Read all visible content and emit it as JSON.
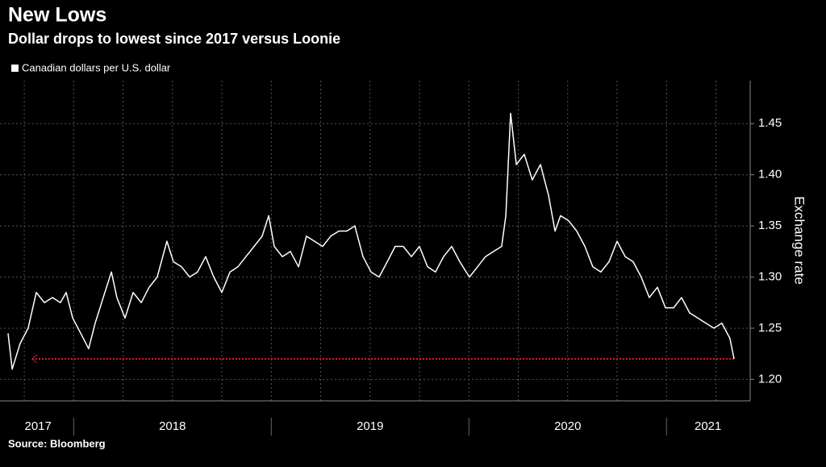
{
  "chart_data": {
    "type": "line",
    "title": "New Lows",
    "subtitle": "Dollar drops to lowest since 2017 versus Loonie",
    "y_axis_label": "Exchange rate",
    "source": "Source: Bloomberg",
    "x": [
      2017.668,
      2017.689,
      2017.729,
      2017.77,
      2017.811,
      2017.852,
      2017.893,
      2017.933,
      2017.962,
      2017.995,
      2018.036,
      2018.076,
      2018.109,
      2018.15,
      2018.191,
      2018.219,
      2018.26,
      2018.301,
      2018.342,
      2018.382,
      2018.423,
      2018.472,
      2018.505,
      2018.546,
      2018.587,
      2018.627,
      2018.668,
      2018.709,
      2018.75,
      2018.791,
      2018.831,
      2018.872,
      2018.913,
      2018.954,
      2018.987,
      2019.015,
      2019.056,
      2019.097,
      2019.138,
      2019.178,
      2019.219,
      2019.26,
      2019.301,
      2019.342,
      2019.382,
      2019.423,
      2019.464,
      2019.505,
      2019.546,
      2019.587,
      2019.627,
      2019.668,
      2019.709,
      2019.75,
      2019.791,
      2019.831,
      2019.872,
      2019.913,
      2019.954,
      2020.003,
      2020.044,
      2020.084,
      2020.125,
      2020.166,
      2020.187,
      2020.211,
      2020.24,
      2020.28,
      2020.321,
      2020.362,
      2020.403,
      2020.436,
      2020.464,
      2020.505,
      2020.546,
      2020.587,
      2020.627,
      2020.668,
      2020.709,
      2020.75,
      2020.791,
      2020.831,
      2020.872,
      2020.913,
      2020.954,
      2020.995,
      2021.036,
      2021.076,
      2021.117,
      2021.158,
      2021.199,
      2021.24,
      2021.28,
      2021.321,
      2021.342
    ],
    "series": [
      {
        "name": "Canadian dollars per U.S. dollar",
        "color": "#ffffff",
        "values": [
          1.245,
          1.21,
          1.235,
          1.25,
          1.285,
          1.275,
          1.28,
          1.275,
          1.285,
          1.26,
          1.245,
          1.23,
          1.255,
          1.28,
          1.305,
          1.28,
          1.26,
          1.285,
          1.275,
          1.29,
          1.3,
          1.335,
          1.315,
          1.31,
          1.3,
          1.305,
          1.32,
          1.3,
          1.285,
          1.305,
          1.31,
          1.32,
          1.33,
          1.34,
          1.36,
          1.33,
          1.32,
          1.325,
          1.31,
          1.34,
          1.335,
          1.33,
          1.34,
          1.345,
          1.345,
          1.35,
          1.32,
          1.305,
          1.3,
          1.315,
          1.33,
          1.33,
          1.32,
          1.33,
          1.31,
          1.305,
          1.32,
          1.33,
          1.315,
          1.3,
          1.31,
          1.32,
          1.325,
          1.33,
          1.36,
          1.46,
          1.41,
          1.42,
          1.395,
          1.41,
          1.38,
          1.345,
          1.36,
          1.355,
          1.345,
          1.33,
          1.31,
          1.305,
          1.315,
          1.335,
          1.32,
          1.315,
          1.3,
          1.28,
          1.29,
          1.27,
          1.27,
          1.28,
          1.265,
          1.26,
          1.255,
          1.25,
          1.255,
          1.24,
          1.22
        ]
      }
    ],
    "reference_line": {
      "value": 1.22,
      "color": "#d0202a"
    },
    "xlim": [
      2017.66,
      2021.35
    ],
    "xticks": [
      {
        "value": 2017.82,
        "label": "2017"
      },
      {
        "value": 2018.5,
        "label": "2018"
      },
      {
        "value": 2019.5,
        "label": "2019"
      },
      {
        "value": 2020.5,
        "label": "2020"
      },
      {
        "value": 2021.21,
        "label": "2021"
      }
    ],
    "ylim": [
      1.179,
      1.492
    ],
    "yticks": [
      {
        "value": 1.2,
        "label": "1.20"
      },
      {
        "value": 1.25,
        "label": "1.25"
      },
      {
        "value": 1.3,
        "label": "1.30"
      },
      {
        "value": 1.35,
        "label": "1.35"
      },
      {
        "value": 1.4,
        "label": "1.40"
      },
      {
        "value": 1.45,
        "label": "1.45"
      }
    ],
    "grid": true
  }
}
